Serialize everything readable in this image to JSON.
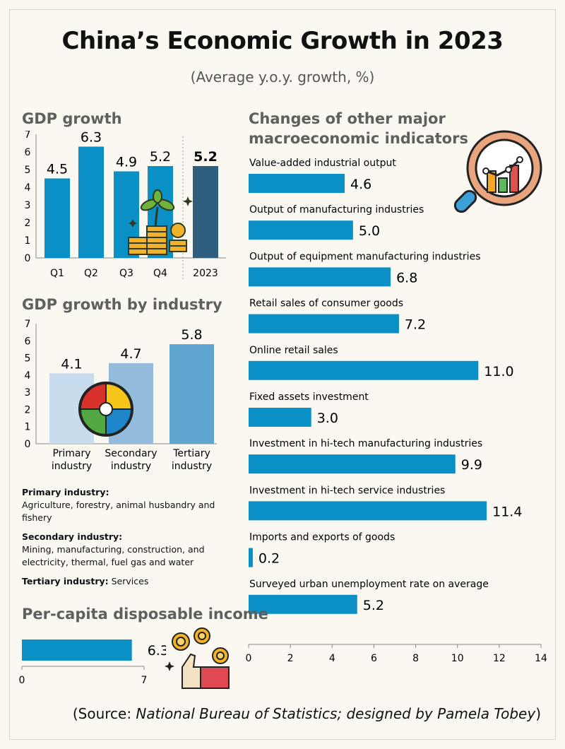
{
  "title": "China’s Economic Growth in 2023",
  "subtitle": "(Average y.o.y. growth, %)",
  "source": {
    "open": "(Source: ",
    "italic": "National Bureau of Statistics; designed by Pamela Tobey",
    "close": ")"
  },
  "notes": {
    "primary_heading": "Primary industry:",
    "primary_text": "Agriculture, forestry, animal husbandry and fishery",
    "secondary_heading": "Secondary industry:",
    "secondary_text": "Mining, manufacturing, construction, and electricity, thermal, fuel gas and water",
    "tertiary_heading": "Tertiary industry:",
    "tertiary_text": "Services"
  },
  "colors": {
    "bar_blue": "#0a90c4",
    "bar_annual": "#2f5f7f",
    "primary": "#c7dced",
    "secondary": "#93bcdc",
    "tertiary": "#5ea6cf"
  },
  "chart_data": [
    {
      "type": "bar",
      "title": "GDP growth",
      "categories": [
        "Q1",
        "Q2",
        "Q3",
        "Q4",
        "2023"
      ],
      "values": [
        4.5,
        6.3,
        4.9,
        5.2,
        5.2
      ],
      "labels": [
        "4.5",
        "6.3",
        "4.9",
        "5.2",
        "5.2"
      ],
      "ylim": [
        0,
        7
      ],
      "yticks": [
        "0",
        "1",
        "2",
        "3",
        "4",
        "5",
        "6",
        "7"
      ]
    },
    {
      "type": "bar",
      "title": "GDP growth by industry",
      "categories": [
        "Primary industry",
        "Secondary industry",
        "Tertiary industry"
      ],
      "category_lines": [
        [
          "Primary",
          "industry"
        ],
        [
          "Secondary",
          "industry"
        ],
        [
          "Tertiary",
          "industry"
        ]
      ],
      "values": [
        4.1,
        4.7,
        5.8
      ],
      "labels": [
        "4.1",
        "4.7",
        "5.8"
      ],
      "ylim": [
        0,
        7
      ],
      "yticks": [
        "0",
        "1",
        "2",
        "3",
        "4",
        "5",
        "6",
        "7"
      ]
    },
    {
      "type": "bar",
      "orientation": "horizontal",
      "title": "Changes of other major macroeconomic indicators",
      "title_lines": [
        "Changes of other major",
        "macroeconomic indicators"
      ],
      "categories": [
        "Value-added industrial output",
        "Output of manufacturing industries",
        "Output of equipment manufacturing industries",
        "Retail sales of consumer goods",
        "Online retail sales",
        "Fixed assets investment",
        "Investment in hi-tech manufacturing industries",
        "Investment in hi-tech service industries",
        "Imports and exports of goods",
        "Surveyed urban unemployment rate on average"
      ],
      "values": [
        4.6,
        5.0,
        6.8,
        7.2,
        11.0,
        3.0,
        9.9,
        11.4,
        0.2,
        5.2
      ],
      "labels": [
        "4.6",
        "5.0",
        "6.8",
        "7.2",
        "11.0",
        "3.0",
        "9.9",
        "11.4",
        "0.2",
        "5.2"
      ],
      "xlim": [
        0,
        14
      ],
      "xticks": [
        "0",
        "2",
        "4",
        "6",
        "8",
        "10",
        "12",
        "14"
      ]
    },
    {
      "type": "bar",
      "orientation": "horizontal",
      "title": "Per-capita disposable income",
      "values": [
        6.3
      ],
      "labels": [
        "6.3"
      ],
      "xlim": [
        0,
        7
      ],
      "xticks": [
        "0",
        "7"
      ]
    }
  ]
}
